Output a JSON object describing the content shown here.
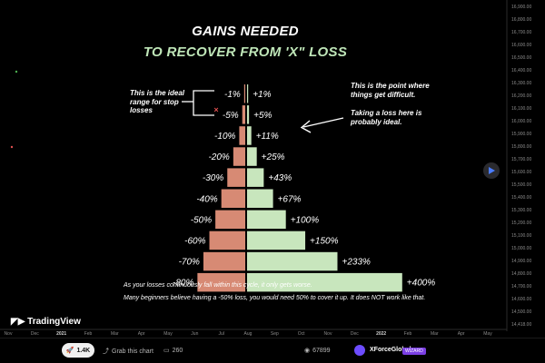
{
  "header": {
    "title": "GAINS NEEDED",
    "subtitle": "TO RECOVER FROM 'X\" LOSS"
  },
  "colors": {
    "loss_bar": "#d78a74",
    "gain_bar": "#c8e6bd",
    "subtitle": "#bfe6b8",
    "background": "#000000"
  },
  "chart_data": {
    "type": "bar",
    "title": "GAINS NEEDED",
    "subtitle": "TO RECOVER FROM 'X\" LOSS",
    "series": [
      {
        "values": [
          1,
          5,
          10,
          20,
          30,
          40,
          50,
          60,
          70,
          80
        ],
        "labels": [
          "-1%",
          "-5%",
          "-10%",
          "-20%",
          "-30%",
          "-40%",
          "-50%",
          "-60%",
          "-70%",
          "-80%"
        ]
      },
      {
        "values": [
          1,
          5,
          11,
          25,
          43,
          67,
          100,
          150,
          233,
          400
        ],
        "labels": [
          "+1%",
          "+5%",
          "+11%",
          "+25%",
          "+43%",
          "+67%",
          "+100%",
          "+150%",
          "+233%",
          "+400%"
        ]
      }
    ],
    "price_axis": [
      "16,900.00",
      "16,800.00",
      "16,700.00",
      "16,600.00",
      "16,500.00",
      "16,400.00",
      "16,300.00",
      "16,200.00",
      "16,100.00",
      "16,000.00",
      "15,900.00",
      "15,800.00",
      "15,700.00",
      "15,600.00",
      "15,500.00",
      "15,400.00",
      "15,300.00",
      "15,200.00",
      "15,100.00",
      "15,000.00",
      "14,900.00",
      "14,800.00",
      "14,700.00",
      "14,600.00",
      "14,500.00",
      "14,418.00"
    ],
    "time_axis": [
      "Nov",
      "Dec",
      "2021",
      "Feb",
      "Mar",
      "Apr",
      "May",
      "Jun",
      "Jul",
      "Aug",
      "Sep",
      "Oct",
      "Nov",
      "Dec",
      "2022",
      "Feb",
      "Mar",
      "Apr",
      "May"
    ]
  },
  "annotations": {
    "left_note": "This is the ideal range for stop losses",
    "right_note_1": "This is the point where things get difficult.",
    "right_note_2": "Taking a loss here is probably ideal.",
    "footer_1": "As your losses continuously fall within this cycle, it only gets worse.",
    "footer_2": "Many beginners believe having a -50% loss, you would need 50% to cover it up. It does NOT work like that."
  },
  "branding": {
    "logo": "TradingView"
  },
  "bottom_bar": {
    "boost_count": "1.4K",
    "grab_label": "Grab this chart",
    "comment_count": "260",
    "view_count": "67899",
    "author": "XForceGlobal",
    "author_badge": "WIZARD"
  }
}
